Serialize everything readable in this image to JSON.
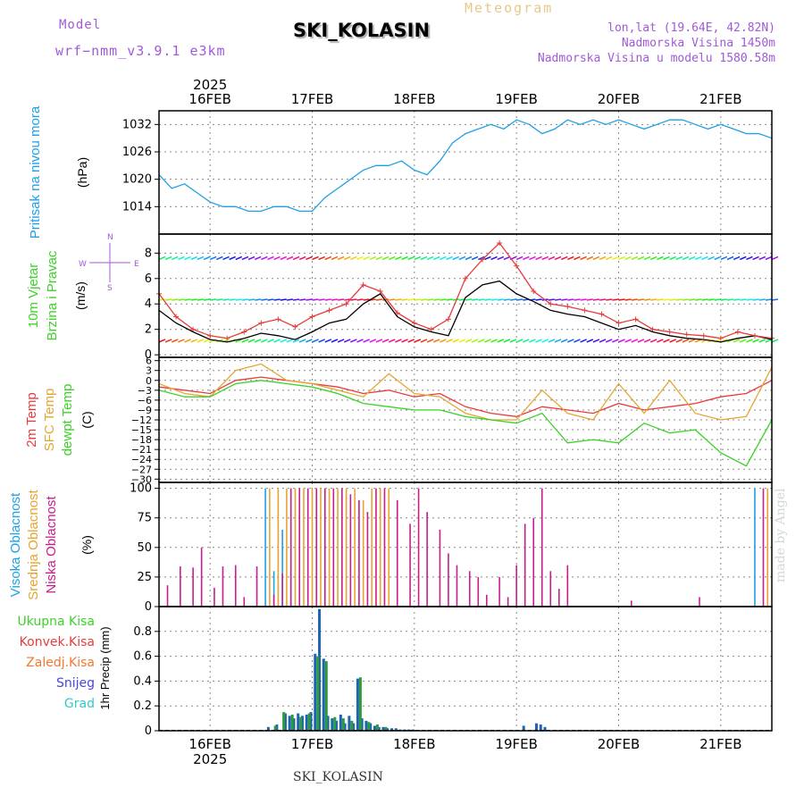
{
  "header": {
    "model_label": "Model",
    "model_name": "wrf−nmm_v3.9.1  e3km",
    "meteogram_label": "Meteogram",
    "station": "SKI_KOLASIN",
    "lonlat": "lon,lat (19.64E, 42.82N)",
    "altitude": "Nadmorska Visina 1450m",
    "model_altitude": "Nadmorska Visina u modelu 1580.58m",
    "footer_station": "SKI_KOLASIN",
    "watermark": "made by Angel",
    "colors": {
      "purple": "#a05ad8",
      "tan": "#e8c888",
      "title": "#000000"
    }
  },
  "time_axis": {
    "year": "2025",
    "days": [
      "16FEB",
      "17FEB",
      "18FEB",
      "19FEB",
      "20FEB",
      "21FEB"
    ],
    "hour_range": [
      0,
      144
    ]
  },
  "chart_data": [
    {
      "type": "line",
      "title": "Pritisak na nivou mora",
      "ylabel": "(hPa)",
      "ylim": [
        1008,
        1035
      ],
      "yticks": [
        "1014",
        "1020",
        "1026",
        "1032"
      ],
      "series": [
        {
          "name": "SLP",
          "color": "#1ea0e6",
          "x": [
            0,
            3,
            6,
            9,
            12,
            15,
            18,
            21,
            24,
            27,
            30,
            33,
            36,
            39,
            42,
            45,
            48,
            51,
            54,
            57,
            60,
            63,
            66,
            69,
            72,
            75,
            78,
            81,
            84,
            87,
            90,
            93,
            96,
            99,
            102,
            105,
            108,
            111,
            114,
            117,
            120,
            123,
            126,
            129,
            132,
            135,
            138,
            141,
            144
          ],
          "values": [
            1021,
            1018,
            1019,
            1017,
            1015,
            1014,
            1014,
            1013,
            1013,
            1014,
            1014,
            1013,
            1013,
            1016,
            1018,
            1020,
            1022,
            1023,
            1023,
            1024,
            1022,
            1021,
            1024,
            1028,
            1030,
            1031,
            1032,
            1031,
            1033,
            1032,
            1030,
            1031,
            1033,
            1032,
            1033,
            1032,
            1033,
            1032,
            1031,
            1032,
            1033,
            1033,
            1032,
            1031,
            1032,
            1031,
            1030,
            1030,
            1029
          ]
        }
      ]
    },
    {
      "type": "line",
      "title": "10m Vjetar Brzina i Pravac",
      "ylabel": "(m/s)",
      "ylim": [
        -0.2,
        9.5
      ],
      "yticks": [
        "0",
        "2",
        "4",
        "6",
        "8"
      ],
      "legend_compass": {
        "n": "N",
        "s": "S",
        "e": "E",
        "w": "W"
      },
      "series": [
        {
          "name": "wind speed",
          "color": "#000000",
          "x": [
            0,
            4,
            8,
            12,
            16,
            20,
            24,
            28,
            32,
            36,
            40,
            44,
            48,
            52,
            56,
            60,
            64,
            68,
            72,
            76,
            80,
            84,
            88,
            92,
            96,
            100,
            104,
            108,
            112,
            116,
            120,
            124,
            128,
            132,
            136,
            140,
            144
          ],
          "values": [
            3.5,
            2.5,
            1.8,
            1.2,
            1.0,
            1.3,
            1.7,
            1.5,
            1.2,
            1.8,
            2.5,
            2.8,
            4.0,
            4.8,
            3.0,
            2.2,
            1.8,
            1.5,
            4.5,
            5.5,
            5.8,
            4.8,
            4.2,
            3.5,
            3.2,
            3.0,
            2.5,
            2.0,
            2.3,
            1.8,
            1.5,
            1.3,
            1.2,
            1.0,
            1.3,
            1.5,
            1.2
          ]
        },
        {
          "name": "wind gust",
          "color": "#e63c3c",
          "x": [
            0,
            4,
            8,
            12,
            16,
            20,
            24,
            28,
            32,
            36,
            40,
            44,
            48,
            52,
            56,
            60,
            64,
            68,
            72,
            76,
            80,
            84,
            88,
            92,
            96,
            100,
            104,
            108,
            112,
            116,
            120,
            124,
            128,
            132,
            136,
            140,
            144
          ],
          "values": [
            4.8,
            3.0,
            2.0,
            1.5,
            1.3,
            1.8,
            2.5,
            2.8,
            2.2,
            3.0,
            3.5,
            4.0,
            5.5,
            5.0,
            3.3,
            2.5,
            2.0,
            2.8,
            6.0,
            7.5,
            8.8,
            7.0,
            5.0,
            4.0,
            3.8,
            3.5,
            3.2,
            2.5,
            2.8,
            2.0,
            1.8,
            1.6,
            1.5,
            1.3,
            1.8,
            1.5,
            1.3
          ]
        }
      ],
      "barb_rows": [
        1.0,
        4.3,
        7.5
      ]
    },
    {
      "type": "line",
      "title": "2m Temp / SFC Temp / dewpt Temp",
      "ylabel": "(C)",
      "ylim": [
        -31,
        7
      ],
      "yticks": [
        "6",
        "3",
        "0",
        "−3",
        "−6",
        "−9",
        "−12",
        "−15",
        "−18",
        "−21",
        "−24",
        "−27",
        "−30"
      ],
      "series": [
        {
          "name": "2m Temp",
          "color": "#e63c3c",
          "x": [
            0,
            6,
            12,
            18,
            24,
            30,
            36,
            42,
            48,
            54,
            60,
            66,
            72,
            78,
            84,
            90,
            96,
            102,
            108,
            114,
            120,
            126,
            132,
            138,
            144
          ],
          "values": [
            -2,
            -3,
            -4,
            0,
            1,
            0,
            -1,
            -2,
            -4,
            -3,
            -5,
            -4,
            -8,
            -10,
            -11,
            -8,
            -9,
            -10,
            -7,
            -9,
            -8,
            -7,
            -5,
            -4,
            0
          ]
        },
        {
          "name": "SFC Temp",
          "color": "#e6a532",
          "x": [
            0,
            6,
            12,
            18,
            24,
            30,
            36,
            42,
            48,
            54,
            60,
            66,
            72,
            78,
            84,
            90,
            96,
            102,
            108,
            114,
            120,
            126,
            132,
            138,
            144
          ],
          "values": [
            -1,
            -4,
            -5,
            3,
            5,
            0,
            -1,
            -3,
            -5,
            2,
            -4,
            -5,
            -10,
            -12,
            -12,
            -3,
            -10,
            -12,
            -1,
            -10,
            0,
            -10,
            -12,
            -11,
            4
          ]
        },
        {
          "name": "dewpt Temp",
          "color": "#3cd228",
          "x": [
            0,
            6,
            12,
            18,
            24,
            30,
            36,
            42,
            48,
            54,
            60,
            66,
            72,
            78,
            84,
            90,
            96,
            102,
            108,
            114,
            120,
            126,
            132,
            138,
            144
          ],
          "values": [
            -3,
            -5,
            -5,
            -1,
            0,
            -1,
            -2,
            -4,
            -7,
            -8,
            -9,
            -9,
            -11,
            -12,
            -13,
            -10,
            -19,
            -18,
            -19,
            -13,
            -16,
            -15,
            -22,
            -26,
            -12
          ]
        }
      ]
    },
    {
      "type": "bar",
      "title": "Visoka / Srednja / Niska Oblacnost",
      "ylabel": "(%)",
      "ylim": [
        0,
        105
      ],
      "yticks": [
        "0",
        "25",
        "50",
        "75",
        "100"
      ],
      "series": [
        {
          "name": "Visoka Oblacnost",
          "color": "#1ea0e6",
          "x": [
            25,
            27,
            29,
            31,
            140
          ],
          "values": [
            100,
            30,
            65,
            30,
            100
          ]
        },
        {
          "name": "Srednja Oblacnost",
          "color": "#e6a532",
          "x": [
            26,
            28,
            30,
            32,
            34,
            36,
            38,
            40,
            42,
            44,
            46,
            48,
            50,
            52,
            54,
            143
          ],
          "values": [
            100,
            100,
            100,
            100,
            100,
            100,
            100,
            100,
            100,
            100,
            100,
            90,
            100,
            100,
            100,
            100
          ]
        },
        {
          "name": "Niska Oblacnost",
          "color": "#c81e8c",
          "x": [
            2,
            5,
            8,
            10,
            13,
            15,
            18,
            20,
            23,
            27,
            29,
            31,
            33,
            35,
            37,
            39,
            41,
            43,
            45,
            47,
            49,
            51,
            53,
            56,
            59,
            61,
            63,
            66,
            68,
            70,
            73,
            75,
            77,
            80,
            82,
            84,
            86,
            88,
            90,
            92,
            94,
            96,
            111,
            127,
            142
          ],
          "values": [
            18,
            34,
            33,
            50,
            16,
            34,
            35,
            8,
            34,
            10,
            28,
            100,
            100,
            100,
            100,
            100,
            100,
            100,
            95,
            90,
            80,
            100,
            100,
            90,
            70,
            100,
            80,
            65,
            45,
            35,
            30,
            25,
            10,
            25,
            8,
            35,
            70,
            75,
            100,
            30,
            15,
            35,
            5,
            8,
            100
          ]
        }
      ]
    },
    {
      "type": "bar",
      "title": "1hr Precip",
      "ylabel": "1hr Precip (mm)",
      "ylim": [
        0,
        1.0
      ],
      "yticks": [
        "0",
        "0.2",
        "0.4",
        "0.6",
        "0.8"
      ],
      "legend": [
        {
          "label": "Ukupna Kisa",
          "color": "#3cd228"
        },
        {
          "label": "Konvek.Kisa",
          "color": "#e63c3c"
        },
        {
          "label": "Zaledj.Kisa",
          "color": "#f07832"
        },
        {
          "label": "Snijeg",
          "color": "#4646e6"
        },
        {
          "label": "Grad",
          "color": "#32c8c8"
        }
      ],
      "series": [
        {
          "name": "Snijeg",
          "color": "#1e64b4",
          "x": [
            26,
            28,
            30,
            31,
            32,
            33,
            34,
            35,
            36,
            37,
            38,
            39,
            40,
            41,
            42,
            43,
            44,
            45,
            46,
            47,
            48,
            49,
            50,
            51,
            52,
            53,
            54,
            55,
            56,
            57,
            58,
            59,
            60,
            86,
            89,
            90,
            91
          ],
          "values": [
            0.03,
            0.05,
            0.14,
            0.12,
            0.1,
            0.14,
            0.12,
            0.13,
            0.15,
            0.62,
            0.98,
            0.58,
            0.12,
            0.1,
            0.08,
            0.13,
            0.06,
            0.12,
            0.06,
            0.42,
            0.1,
            0.08,
            0.06,
            0.04,
            0.03,
            0.03,
            0.02,
            0.02,
            0.02,
            0.01,
            0.01,
            0.01,
            0.01,
            0.04,
            0.06,
            0.05,
            0.03
          ]
        },
        {
          "name": "Ukupna Kisa",
          "color": "#2d9b3c",
          "x": [
            27,
            29,
            31,
            33,
            35,
            37,
            39,
            41,
            43,
            45,
            47,
            49,
            51,
            53
          ],
          "values": [
            0.04,
            0.15,
            0.13,
            0.11,
            0.14,
            0.6,
            0.56,
            0.11,
            0.1,
            0.08,
            0.43,
            0.07,
            0.05,
            0.03
          ]
        }
      ]
    }
  ]
}
